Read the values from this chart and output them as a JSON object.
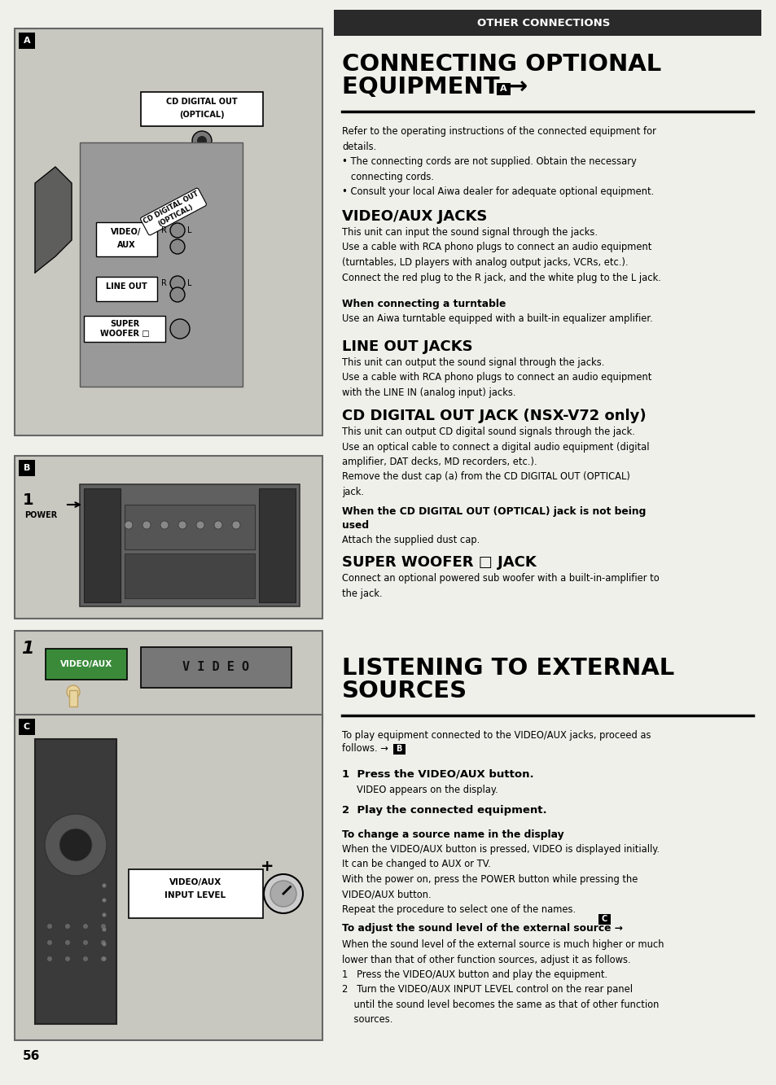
{
  "page_bg": "#f0f0eb",
  "left_panel_bg": "#c8c8c0",
  "header_bar_bg": "#2a2a2a",
  "header_text": "OTHER CONNECTIONS",
  "header_text_color": "#ffffff",
  "section1_body": "Refer to the operating instructions of the connected equipment for\ndetails.\n• The connecting cords are not supplied. Obtain the necessary\n   connecting cords.\n• Consult your local Aiwa dealer for adequate optional equipment.",
  "sub1_title": "VIDEO/AUX JACKS",
  "sub1_body": "This unit can input the sound signal through the jacks.\nUse a cable with RCA phono plugs to connect an audio equipment\n(turntables, LD players with analog output jacks, VCRs, etc.).\nConnect the red plug to the R jack, and the white plug to the L jack.",
  "sub1a_title": "When connecting a turntable",
  "sub1a_body": "Use an Aiwa turntable equipped with a built-in equalizer amplifier.",
  "sub2_title": "LINE OUT JACKS",
  "sub2_body": "This unit can output the sound signal through the jacks.\nUse a cable with RCA phono plugs to connect an audio equipment\nwith the LINE IN (analog input) jacks.",
  "sub3_title": "CD DIGITAL OUT JACK (NSX-V72 only)",
  "sub3_body": "This unit can output CD digital sound signals through the jack.\nUse an optical cable to connect a digital audio equipment (digital\namplifier, DAT decks, MD recorders, etc.).\nRemove the dust cap (a) from the CD DIGITAL OUT (OPTICAL)\njack.",
  "sub3a_title": "When the CD DIGITAL OUT (OPTICAL) jack is not being\nused",
  "sub3a_body": "Attach the supplied dust cap.",
  "sub4_title": "SUPER WOOFER □ JACK",
  "sub4_body": "Connect an optional powered sub woofer with a built-in-amplifier to\nthe jack.",
  "step1_bold": "1  Press the VIDEO/AUX button.",
  "step1_body": "VIDEO appears on the display.",
  "step2_bold": "2  Play the connected equipment.",
  "sub5_title": "To change a source name in the display",
  "sub5_body": "When the VIDEO/AUX button is pressed, VIDEO is displayed initially.\nIt can be changed to AUX or TV.\nWith the power on, press the POWER button while pressing the\nVIDEO/AUX button.\nRepeat the procedure to select one of the names.",
  "sub6_title": "To adjust the sound level of the external source → ",
  "sub6_body": "When the sound level of the external source is much higher or much\nlower than that of other function sources, adjust it as follows.\n1   Press the VIDEO/AUX button and play the equipment.\n2   Turn the VIDEO/AUX INPUT LEVEL control on the rear panel\n    until the sound level becomes the same as that of other function\n    sources.",
  "page_number": "56"
}
